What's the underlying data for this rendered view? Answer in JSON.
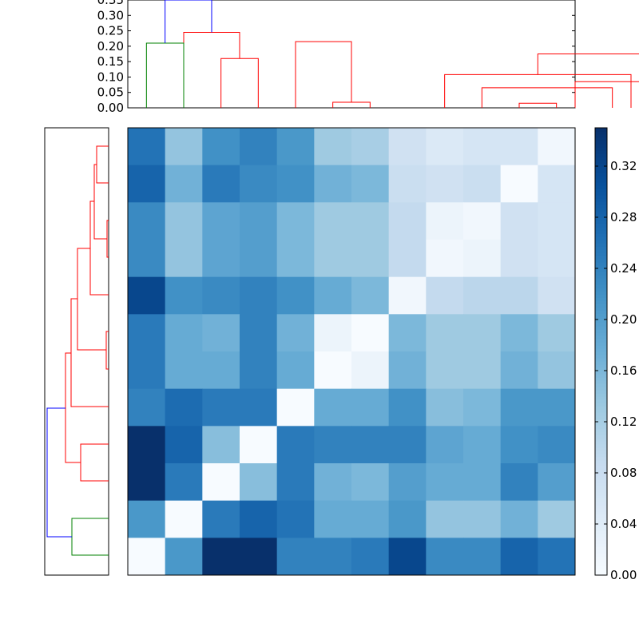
{
  "chart_data": [
    {
      "type": "heatmap",
      "colormap": "Blues",
      "n_rows": 12,
      "n_cols": 12,
      "matrix": [
        [
          0.26,
          0.14,
          0.22,
          0.24,
          0.21,
          0.13,
          0.12,
          0.07,
          0.05,
          0.06,
          0.06,
          0.01
        ],
        [
          0.28,
          0.17,
          0.25,
          0.23,
          0.22,
          0.17,
          0.16,
          0.08,
          0.07,
          0.08,
          0.0,
          0.06
        ],
        [
          0.23,
          0.14,
          0.19,
          0.2,
          0.16,
          0.13,
          0.13,
          0.09,
          0.02,
          0.01,
          0.07,
          0.06
        ],
        [
          0.23,
          0.14,
          0.19,
          0.2,
          0.16,
          0.13,
          0.13,
          0.09,
          0.01,
          0.02,
          0.07,
          0.06
        ],
        [
          0.32,
          0.22,
          0.23,
          0.24,
          0.22,
          0.18,
          0.16,
          0.01,
          0.09,
          0.1,
          0.1,
          0.07
        ],
        [
          0.25,
          0.18,
          0.17,
          0.24,
          0.17,
          0.02,
          0.0,
          0.16,
          0.13,
          0.13,
          0.16,
          0.13
        ],
        [
          0.25,
          0.18,
          0.18,
          0.24,
          0.18,
          0.0,
          0.02,
          0.17,
          0.13,
          0.13,
          0.17,
          0.14
        ],
        [
          0.24,
          0.27,
          0.25,
          0.25,
          0.0,
          0.18,
          0.18,
          0.22,
          0.15,
          0.16,
          0.21,
          0.21
        ],
        [
          0.35,
          0.28,
          0.15,
          0.0,
          0.25,
          0.24,
          0.24,
          0.24,
          0.19,
          0.18,
          0.22,
          0.23
        ],
        [
          0.35,
          0.25,
          0.0,
          0.15,
          0.25,
          0.17,
          0.16,
          0.2,
          0.18,
          0.18,
          0.24,
          0.2
        ],
        [
          0.21,
          0.0,
          0.25,
          0.28,
          0.26,
          0.18,
          0.18,
          0.21,
          0.14,
          0.14,
          0.17,
          0.13
        ],
        [
          0.0,
          0.21,
          0.35,
          0.35,
          0.24,
          0.24,
          0.25,
          0.32,
          0.23,
          0.23,
          0.28,
          0.26
        ]
      ],
      "colorbar": {
        "min": 0.0,
        "max": 0.35,
        "ticks": [
          "0.00",
          "0.04",
          "0.08",
          "0.12",
          "0.16",
          "0.20",
          "0.24",
          "0.28",
          "0.32"
        ]
      }
    },
    {
      "type": "dendrogram",
      "orientation": "top",
      "yticks": [
        "0.00",
        "0.05",
        "0.10",
        "0.15",
        "0.20",
        "0.25",
        "0.30",
        "0.35"
      ],
      "ylim": [
        0,
        0.35
      ],
      "leaf_count": 12,
      "links": [
        {
          "left": 10,
          "right": 11,
          "height": 0.015,
          "color": "#ff0000"
        },
        {
          "left": 5,
          "right": 6,
          "height": 0.018,
          "color": "#ff0000"
        },
        {
          "left": 12.5,
          "right": 9,
          "height": 0.065,
          "color": "#ff0000"
        },
        {
          "left": 11.5,
          "right": 13.5,
          "height": 0.085,
          "color": "#ff0000"
        },
        {
          "left": 8,
          "right": 13.0,
          "height": 0.108,
          "color": "#ff0000"
        },
        {
          "left": 2,
          "right": 3,
          "height": 0.16,
          "color": "#ff0000"
        },
        {
          "left": 4,
          "right": 5.5,
          "height": 0.215,
          "color": "#ff0000"
        },
        {
          "left": 1,
          "right": 2.5,
          "height": 0.245,
          "color": "#ff0000"
        },
        {
          "left": 10.5,
          "right": 14.5,
          "height": 0.175,
          "color": "#ff0000"
        },
        {
          "left": 0,
          "right": 1,
          "height": 0.21,
          "color": "#008000"
        },
        {
          "left": 0.5,
          "right": 1.75,
          "height": 0.35,
          "color": "#0000ff"
        }
      ]
    },
    {
      "type": "dendrogram",
      "orientation": "left"
    }
  ]
}
